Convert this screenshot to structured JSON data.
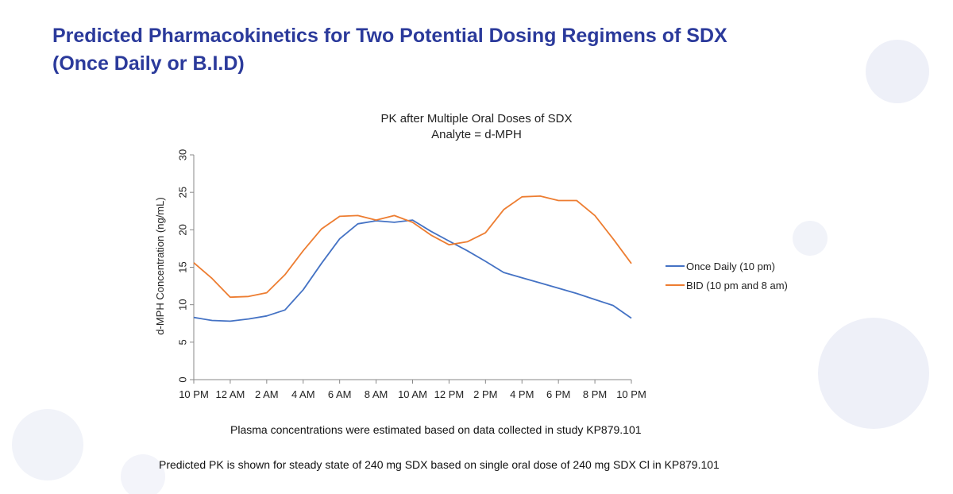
{
  "slide": {
    "title_line1": "Predicted Pharmacokinetics for Two Potential Dosing Regimens of SDX",
    "title_line2": "(Once Daily or B.I.D)",
    "footnote1": "Plasma concentrations were estimated based on data collected in study KP879.101",
    "footnote2": "Predicted PK is shown for steady state of 240 mg SDX based on single oral dose of 240 mg SDX Cl in KP879.101"
  },
  "colors": {
    "title": "#2b3a9b",
    "once_daily": "#4472c4",
    "bid": "#ed7d31",
    "decor": "#e8ebf6"
  },
  "chart_data": {
    "type": "line",
    "title_line1": "PK after Multiple Oral Doses of SDX",
    "title_line2": "Analyte = d-MPH",
    "ylabel": "d-MPH Concentration (ng/mL)",
    "xlabel": "",
    "ylim": [
      0,
      30
    ],
    "yticks": [
      0,
      5,
      10,
      15,
      20,
      25,
      30
    ],
    "grid": false,
    "legend_position": "right",
    "x_tick_labels": [
      "10 PM",
      "12 AM",
      "2 AM",
      "4 AM",
      "6 AM",
      "8 AM",
      "10 AM",
      "12 PM",
      "2 PM",
      "4 PM",
      "6 PM",
      "8 PM",
      "10 PM"
    ],
    "x_hours": [
      0,
      1,
      2,
      3,
      4,
      5,
      6,
      7,
      8,
      9,
      10,
      11,
      12,
      13,
      14,
      15,
      16,
      17,
      18,
      19,
      20,
      21,
      22,
      23,
      24
    ],
    "series": [
      {
        "name": "Once Daily (10 pm)",
        "color": "#4472c4",
        "values": [
          8.3,
          7.9,
          7.8,
          8.1,
          8.5,
          9.3,
          12.0,
          15.5,
          18.8,
          20.8,
          21.2,
          21.0,
          21.3,
          19.8,
          18.5,
          17.2,
          15.8,
          14.3,
          13.6,
          12.9,
          12.2,
          11.5,
          10.7,
          9.9,
          8.2
        ]
      },
      {
        "name": "BID (10 pm and 8 am)",
        "color": "#ed7d31",
        "values": [
          15.6,
          13.5,
          11.0,
          11.1,
          11.6,
          14.0,
          17.2,
          20.1,
          21.8,
          21.9,
          21.3,
          21.9,
          21.0,
          19.3,
          18.0,
          18.4,
          19.6,
          22.7,
          24.4,
          24.5,
          23.9,
          23.9,
          21.9,
          18.8,
          15.5
        ]
      }
    ]
  }
}
